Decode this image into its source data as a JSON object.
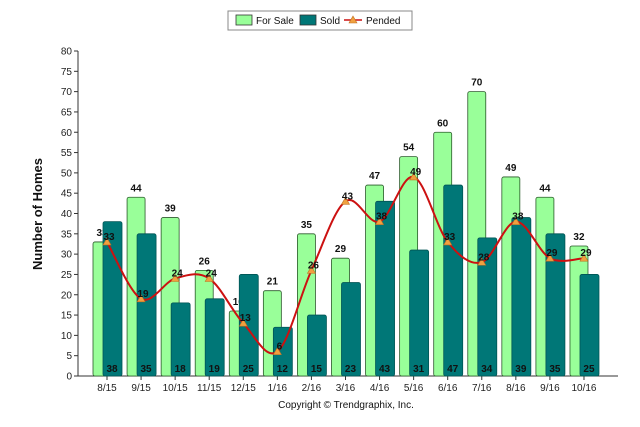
{
  "chart_data": {
    "type": "bar",
    "title": "",
    "xlabel": "",
    "ylabel": "Number of Homes",
    "footer": "Copyright © Trendgraphix, Inc.",
    "ylim": [
      0,
      80
    ],
    "yticks": [
      0,
      5,
      10,
      15,
      20,
      25,
      30,
      35,
      40,
      45,
      50,
      55,
      60,
      65,
      70,
      75,
      80
    ],
    "grid": false,
    "legend_placement": "top-center",
    "categories": [
      "8/15",
      "9/15",
      "10/15",
      "11/15",
      "12/15",
      "1/16",
      "2/16",
      "3/16",
      "4/16",
      "5/16",
      "6/16",
      "7/16",
      "8/16",
      "9/16",
      "10/16"
    ],
    "series": [
      {
        "name": "For Sale",
        "type": "bar",
        "color": "#99ff99",
        "values": [
          33,
          44,
          39,
          26,
          16,
          21,
          35,
          29,
          47,
          54,
          60,
          70,
          49,
          44,
          32
        ]
      },
      {
        "name": "Sold",
        "type": "bar",
        "color": "#007777",
        "values": [
          38,
          35,
          18,
          19,
          25,
          12,
          15,
          23,
          43,
          31,
          47,
          34,
          39,
          35,
          25
        ]
      },
      {
        "name": "Pended",
        "type": "line",
        "color": "#cc1111",
        "marker_color": "#f0a040",
        "values": [
          33,
          19,
          24,
          24,
          13,
          6,
          26,
          43,
          38,
          49,
          33,
          28,
          38,
          29,
          29
        ]
      }
    ]
  }
}
